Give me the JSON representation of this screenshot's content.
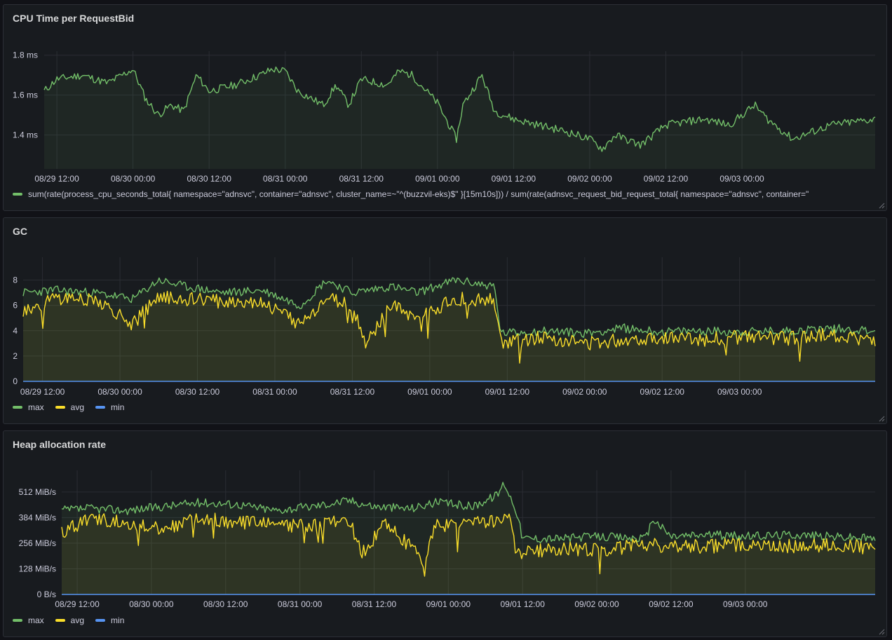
{
  "colors": {
    "background": "#111217",
    "panel": "#181b1f",
    "grid": "#2a2d33",
    "green": "#73bf69",
    "yellow": "#fade2a",
    "blue": "#5794f2"
  },
  "chart_data": [
    {
      "type": "line",
      "title": "CPU Time per RequestBid",
      "x_range": [
        "2024-08-29T10:00",
        "2024-09-03T21:00"
      ],
      "x_ticks": [
        "08/29 12:00",
        "08/30 00:00",
        "08/30 12:00",
        "08/31 00:00",
        "08/31 12:00",
        "09/01 00:00",
        "09/01 12:00",
        "09/02 00:00",
        "09/02 12:00",
        "09/03 00:00"
      ],
      "y_ticks": [
        "1.4 ms",
        "1.6 ms",
        "1.8 ms"
      ],
      "y_unit": "ms",
      "ylim": [
        1.23,
        1.82
      ],
      "legend": "bottom",
      "series": [
        {
          "name": "sum(rate(process_cpu_seconds_total{ namespace=\"adnsvc\", container=\"adnsvc\", cluster_name=~\"^(buzzvil-eks)$\" }[15m10s])) / sum(rate(adnsvc_request_bid_request_total{ namespace=\"adnsvc\", container=\"",
          "color": "green",
          "x": [
            "2024-08-29T10:00",
            "2024-08-29T12:00",
            "2024-08-29T16:00",
            "2024-08-29T20:00",
            "2024-08-30T00:00",
            "2024-08-30T02:00",
            "2024-08-30T04:00",
            "2024-08-30T06:00",
            "2024-08-30T08:00",
            "2024-08-30T10:00",
            "2024-08-30T12:00",
            "2024-08-30T16:00",
            "2024-08-30T20:00",
            "2024-08-30T22:00",
            "2024-08-31T00:00",
            "2024-08-31T02:00",
            "2024-08-31T06:00",
            "2024-08-31T08:00",
            "2024-08-31T10:00",
            "2024-08-31T12:00",
            "2024-08-31T16:00",
            "2024-08-31T18:00",
            "2024-08-31T20:00",
            "2024-09-01T00:00",
            "2024-09-01T03:00",
            "2024-09-01T04:00",
            "2024-09-01T07:00",
            "2024-09-01T09:00",
            "2024-09-01T12:00",
            "2024-09-01T16:00",
            "2024-09-01T20:00",
            "2024-09-02T00:00",
            "2024-09-02T02:00",
            "2024-09-02T04:00",
            "2024-09-02T08:00",
            "2024-09-02T12:00",
            "2024-09-02T16:00",
            "2024-09-02T18:00",
            "2024-09-02T22:00",
            "2024-09-03T02:00",
            "2024-09-03T04:00",
            "2024-09-03T08:00",
            "2024-09-03T14:00",
            "2024-09-03T21:00"
          ],
          "values": [
            1.62,
            1.68,
            1.7,
            1.66,
            1.73,
            1.58,
            1.5,
            1.55,
            1.52,
            1.7,
            1.62,
            1.65,
            1.7,
            1.73,
            1.72,
            1.62,
            1.55,
            1.65,
            1.55,
            1.68,
            1.65,
            1.72,
            1.7,
            1.56,
            1.38,
            1.55,
            1.7,
            1.52,
            1.48,
            1.45,
            1.42,
            1.38,
            1.33,
            1.4,
            1.35,
            1.45,
            1.47,
            1.48,
            1.45,
            1.55,
            1.48,
            1.38,
            1.45,
            1.48
          ]
        }
      ]
    },
    {
      "type": "line",
      "title": "GC",
      "x_range": [
        "2024-08-29T09:00",
        "2024-09-03T21:00"
      ],
      "x_ticks": [
        "08/29 12:00",
        "08/30 00:00",
        "08/30 12:00",
        "08/31 00:00",
        "08/31 12:00",
        "09/01 00:00",
        "09/01 12:00",
        "09/02 00:00",
        "09/02 12:00",
        "09/03 00:00"
      ],
      "y_ticks": [
        "0",
        "2",
        "4",
        "6",
        "8"
      ],
      "ylim": [
        0,
        9.8
      ],
      "legend": "bottom",
      "series": [
        {
          "name": "max",
          "color": "green",
          "x": [
            "2024-08-29T09:00",
            "2024-08-29T14:00",
            "2024-08-29T20:00",
            "2024-08-30T02:00",
            "2024-08-30T06:00",
            "2024-08-30T10:00",
            "2024-08-30T16:00",
            "2024-08-30T22:00",
            "2024-08-31T04:00",
            "2024-08-31T08:00",
            "2024-08-31T12:00",
            "2024-08-31T18:00",
            "2024-08-31T22:00",
            "2024-09-01T04:00",
            "2024-09-01T10:00",
            "2024-09-01T11:00",
            "2024-09-01T18:00",
            "2024-09-02T00:00",
            "2024-09-02T06:00",
            "2024-09-02T12:00",
            "2024-09-02T18:00",
            "2024-09-03T00:00",
            "2024-09-03T08:00",
            "2024-09-03T14:00",
            "2024-09-03T21:00"
          ],
          "values": [
            7.0,
            7.2,
            7.0,
            6.5,
            8.0,
            7.5,
            7.0,
            7.2,
            6.0,
            8.0,
            7.0,
            7.5,
            7.0,
            8.0,
            7.5,
            3.8,
            4.0,
            3.8,
            4.2,
            3.9,
            4.0,
            3.9,
            4.0,
            4.2,
            4.0
          ]
        },
        {
          "name": "avg",
          "color": "yellow",
          "x": [
            "2024-08-29T09:00",
            "2024-08-29T14:00",
            "2024-08-29T20:00",
            "2024-08-30T02:00",
            "2024-08-30T06:00",
            "2024-08-30T10:00",
            "2024-08-30T16:00",
            "2024-08-30T22:00",
            "2024-08-31T04:00",
            "2024-08-31T08:00",
            "2024-08-31T12:00",
            "2024-08-31T14:00",
            "2024-08-31T18:00",
            "2024-08-31T22:00",
            "2024-09-01T04:00",
            "2024-09-01T10:00",
            "2024-09-01T11:00",
            "2024-09-01T18:00",
            "2024-09-02T00:00",
            "2024-09-02T06:00",
            "2024-09-02T12:00",
            "2024-09-02T18:00",
            "2024-09-03T00:00",
            "2024-09-03T08:00",
            "2024-09-03T14:00",
            "2024-09-03T21:00"
          ],
          "values": [
            5.5,
            6.5,
            6.5,
            4.5,
            6.8,
            6.5,
            6.3,
            6.3,
            4.5,
            6.5,
            6.0,
            3.0,
            6.0,
            5.0,
            6.5,
            6.5,
            3.0,
            3.5,
            3.0,
            3.3,
            3.5,
            3.3,
            3.5,
            3.4,
            3.7,
            3.2
          ]
        },
        {
          "name": "min",
          "color": "blue",
          "x": [
            "2024-08-29T09:00",
            "2024-09-03T21:00"
          ],
          "values": [
            0,
            0
          ]
        }
      ]
    },
    {
      "type": "line",
      "title": "Heap allocation rate",
      "x_range": [
        "2024-08-29T09:30",
        "2024-09-03T21:00"
      ],
      "x_ticks": [
        "08/29 12:00",
        "08/30 00:00",
        "08/30 12:00",
        "08/31 00:00",
        "08/31 12:00",
        "09/01 00:00",
        "09/01 12:00",
        "09/02 00:00",
        "09/02 12:00",
        "09/03 00:00"
      ],
      "y_ticks": [
        "0 B/s",
        "128 MiB/s",
        "256 MiB/s",
        "384 MiB/s",
        "512 MiB/s"
      ],
      "y_unit": "MiB/s",
      "ylim": [
        0,
        620
      ],
      "legend": "bottom",
      "series": [
        {
          "name": "max",
          "color": "green",
          "x": [
            "2024-08-29T09:30",
            "2024-08-29T14:00",
            "2024-08-29T20:00",
            "2024-08-30T02:00",
            "2024-08-30T08:00",
            "2024-08-30T14:00",
            "2024-08-30T20:00",
            "2024-08-31T02:00",
            "2024-08-31T08:00",
            "2024-08-31T12:00",
            "2024-08-31T18:00",
            "2024-08-31T22:00",
            "2024-09-01T04:00",
            "2024-09-01T08:00",
            "2024-09-01T09:00",
            "2024-09-01T11:00",
            "2024-09-01T12:00",
            "2024-09-01T18:00",
            "2024-09-02T00:00",
            "2024-09-02T08:00",
            "2024-09-02T09:00",
            "2024-09-02T12:00",
            "2024-09-02T18:00",
            "2024-09-03T00:00",
            "2024-09-03T08:00",
            "2024-09-03T14:00",
            "2024-09-03T21:00"
          ],
          "values": [
            420,
            430,
            420,
            440,
            460,
            450,
            420,
            440,
            470,
            440,
            430,
            460,
            440,
            500,
            560,
            420,
            280,
            280,
            290,
            280,
            380,
            290,
            300,
            290,
            300,
            290,
            280
          ]
        },
        {
          "name": "avg",
          "color": "yellow",
          "x": [
            "2024-08-29T09:30",
            "2024-08-29T14:00",
            "2024-08-29T20:00",
            "2024-08-30T02:00",
            "2024-08-30T08:00",
            "2024-08-30T14:00",
            "2024-08-30T20:00",
            "2024-08-31T02:00",
            "2024-08-31T08:00",
            "2024-08-31T10:00",
            "2024-08-31T14:00",
            "2024-08-31T20:00",
            "2024-08-31T22:00",
            "2024-09-01T04:00",
            "2024-09-01T10:00",
            "2024-09-01T11:00",
            "2024-09-01T18:00",
            "2024-09-02T00:00",
            "2024-09-02T08:00",
            "2024-09-02T12:00",
            "2024-09-02T18:00",
            "2024-09-03T00:00",
            "2024-09-03T08:00",
            "2024-09-03T14:00",
            "2024-09-03T21:00"
          ],
          "values": [
            310,
            380,
            360,
            330,
            380,
            360,
            350,
            340,
            370,
            200,
            360,
            170,
            340,
            360,
            380,
            210,
            230,
            220,
            250,
            240,
            240,
            250,
            240,
            250,
            230
          ]
        },
        {
          "name": "min",
          "color": "blue",
          "x": [
            "2024-08-29T09:30",
            "2024-09-03T21:00"
          ],
          "values": [
            0,
            0
          ]
        }
      ]
    }
  ]
}
